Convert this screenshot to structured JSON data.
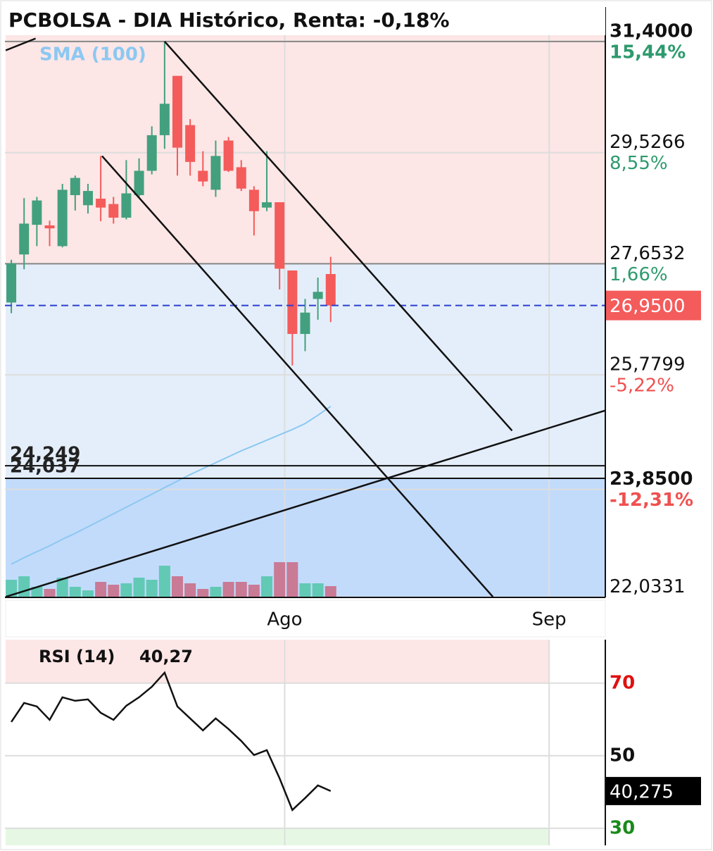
{
  "title": "PCBOLSA - DIA Histórico, Renta: -0,18%",
  "chart_data": [
    {
      "type": "candlestick",
      "x": [
        0,
        1,
        2,
        3,
        4,
        5,
        6,
        7,
        8,
        9,
        10,
        11,
        12,
        13,
        14,
        15,
        16,
        17,
        18,
        19,
        20,
        21,
        22,
        23,
        24,
        25
      ],
      "open": [
        27.0,
        27.81,
        28.31,
        28.3,
        27.95,
        28.81,
        28.64,
        28.75,
        28.66,
        28.43,
        28.81,
        29.22,
        29.82,
        30.82,
        29.99,
        29.22,
        28.9,
        29.73,
        29.28,
        28.9,
        28.6,
        28.69,
        27.54,
        26.47,
        27.06,
        27.48
      ],
      "high": [
        27.72,
        28.76,
        28.78,
        28.38,
        29.0,
        29.14,
        29.0,
        29.47,
        28.78,
        29.4,
        29.43,
        29.97,
        31.39,
        30.82,
        30.09,
        29.55,
        29.73,
        29.79,
        29.4,
        28.96,
        29.55,
        28.69,
        27.54,
        27.06,
        27.42,
        27.77
      ],
      "low": [
        26.82,
        27.56,
        27.95,
        27.95,
        27.93,
        28.55,
        28.5,
        28.37,
        28.33,
        28.4,
        28.78,
        29.16,
        29.59,
        29.14,
        29.14,
        28.96,
        28.78,
        29.2,
        28.88,
        28.13,
        28.54,
        27.22,
        25.94,
        26.18,
        26.71,
        26.67
      ],
      "close": [
        27.66,
        28.33,
        28.72,
        28.25,
        28.9,
        29.1,
        28.88,
        28.6,
        28.43,
        28.84,
        29.22,
        29.82,
        30.35,
        29.61,
        29.37,
        29.04,
        29.47,
        29.22,
        28.92,
        28.54,
        28.69,
        27.57,
        26.47,
        26.83,
        27.18,
        26.95
      ],
      "volume": [
        25,
        30,
        15,
        12,
        28,
        15,
        10,
        22,
        18,
        20,
        28,
        25,
        45,
        30,
        20,
        12,
        15,
        22,
        22,
        18,
        30,
        50,
        50,
        20,
        20,
        16
      ],
      "up_color": "#43a07e",
      "down_color": "#f45b5b",
      "volume_up_color": "#62c9b5",
      "volume_down_color": "#c97a95",
      "sma": {
        "name": "SMA (100)",
        "color": "#8cc8f2",
        "values": [
          22.59,
          22.7,
          22.8,
          22.9,
          23.01,
          23.11,
          23.22,
          23.33,
          23.44,
          23.55,
          23.66,
          23.77,
          23.88,
          23.99,
          24.1,
          24.2,
          24.3,
          24.4,
          24.5,
          24.59,
          24.68,
          24.77,
          24.86,
          24.96,
          25.1,
          25.25
        ]
      },
      "xlim": [
        -0.5,
        46.5
      ],
      "xticks": [
        {
          "value": 21.4,
          "label": "Ago"
        },
        {
          "value": 42.1,
          "label": "Sep"
        }
      ],
      "ylim": [
        22.03,
        31.98
      ],
      "yticks": [
        {
          "value": 31.4,
          "label": "31,4000",
          "change": "15,44%",
          "change_color": "#2e9a6e",
          "bold": true
        },
        {
          "value": 29.5266,
          "label": "29,5266",
          "change": "8,55%",
          "change_color": "#2e9a6e"
        },
        {
          "value": 27.6532,
          "label": "27,6532",
          "change": "1,66%",
          "change_color": "#2e9a6e"
        },
        {
          "value": 25.7799,
          "label": "25,7799",
          "change": "-5,22%",
          "change_color": "#f05050"
        },
        {
          "value": 23.85,
          "label": "23,8500",
          "change": "-12,31%",
          "change_color": "#f05050",
          "bold": true
        },
        {
          "value": 22.0331,
          "label": "22,0331"
        }
      ],
      "zones": [
        {
          "from": 27.6532,
          "to": 31.98,
          "color": "#fde6e6"
        },
        {
          "from": 24.037,
          "to": 27.6532,
          "color": "#e4eefa"
        },
        {
          "from": 22.03,
          "to": 24.037,
          "color": "#c2dbfb"
        }
      ],
      "hlines": [
        {
          "value": 31.4,
          "color": "#888888"
        },
        {
          "value": 27.6532,
          "color": "#888888"
        }
      ],
      "levels": [
        {
          "value": 24.249,
          "label": "24,249"
        },
        {
          "value": 24.037,
          "label": "24,037"
        }
      ],
      "trendlines": [
        {
          "x": [
            -0.44,
            1.9
          ],
          "y": [
            31.25,
            31.45
          ]
        },
        {
          "x": [
            12.0,
            39.2
          ],
          "y": [
            31.4,
            24.84
          ]
        },
        {
          "x": [
            7.1,
            37.7
          ],
          "y": [
            29.47,
            22.04
          ]
        },
        {
          "x": [
            -0.44,
            46.5
          ],
          "y": [
            22.04,
            25.18
          ]
        }
      ],
      "last_price": {
        "value": 26.95,
        "label": "26,9500",
        "color": "#f45b5b",
        "line_color": "#2a3fcf"
      }
    },
    {
      "type": "line",
      "series": [
        {
          "name": "RSI (14)",
          "color": "#111111",
          "values": [
            59.32,
            64.56,
            63.59,
            59.9,
            66.12,
            65.15,
            65.53,
            61.84,
            59.9,
            63.79,
            66.12,
            69.03,
            72.91,
            63.59,
            60.29,
            56.99,
            60.29,
            57.38,
            54.08,
            50.19,
            51.55,
            43.79,
            35.05,
            38.35,
            41.84,
            40.27
          ]
        }
      ],
      "value_label": {
        "value": 40.27,
        "label": "40,27"
      },
      "last_box": {
        "value": 40.275,
        "label": "40,275"
      },
      "xlim": [
        -0.5,
        46.5
      ],
      "ylim": [
        25.3,
        82
      ],
      "yticks": [
        {
          "value": 70,
          "label": "70",
          "color": "#e01010"
        },
        {
          "value": 50,
          "label": "50",
          "color": "#111111"
        },
        {
          "value": 30,
          "label": "30",
          "color": "#1a8a1a"
        }
      ],
      "zones": [
        {
          "from": 70,
          "to": 82,
          "color": "#fde6e6"
        },
        {
          "from": 25.3,
          "to": 30,
          "color": "#e6f8e4"
        }
      ]
    }
  ]
}
